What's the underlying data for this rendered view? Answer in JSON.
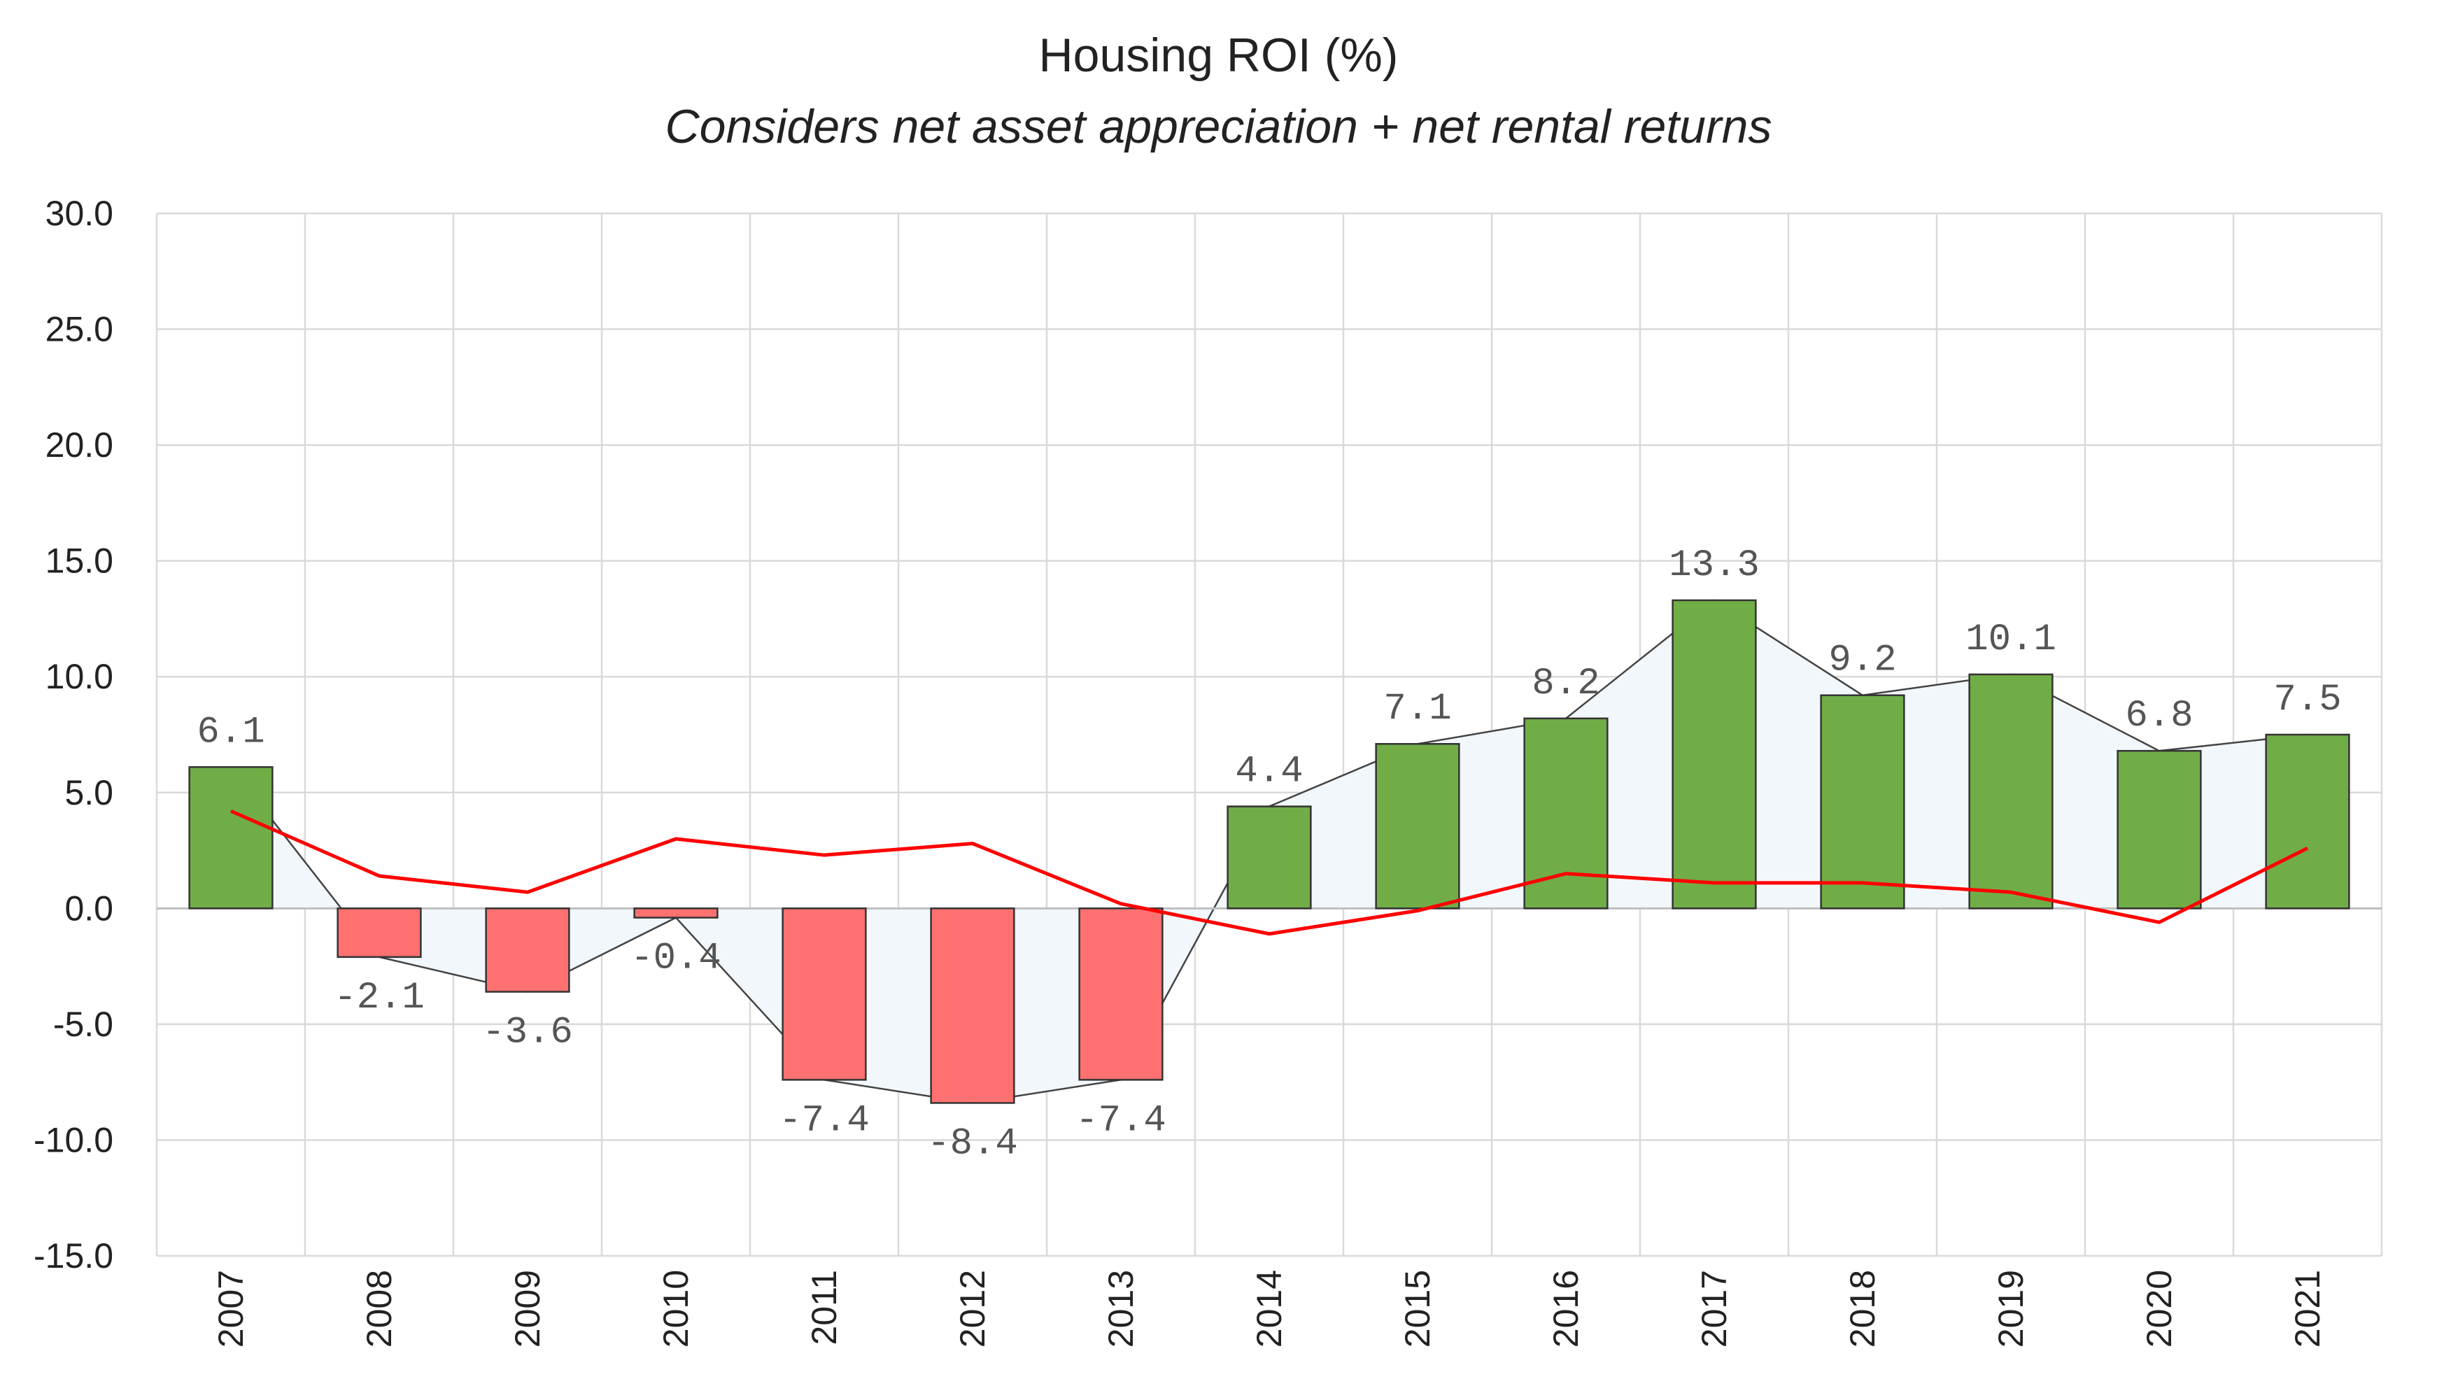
{
  "chart_data": {
    "type": "bar",
    "title": "Housing ROI (%)",
    "subtitle": "Considers net asset appreciation + net rental returns",
    "categories": [
      "2007",
      "2008",
      "2009",
      "2010",
      "2011",
      "2012",
      "2013",
      "2014",
      "2015",
      "2016",
      "2017",
      "2018",
      "2019",
      "2020",
      "2021"
    ],
    "series": [
      {
        "type": "bar",
        "values": [
          6.1,
          -2.1,
          -3.6,
          -0.4,
          -7.4,
          -8.4,
          -7.4,
          4.4,
          7.1,
          8.2,
          13.3,
          9.2,
          10.1,
          6.8,
          7.5
        ]
      },
      {
        "type": "line",
        "values": [
          4.2,
          1.4,
          0.7,
          3.0,
          2.3,
          2.8,
          0.2,
          -1.1,
          -0.1,
          1.5,
          1.1,
          1.1,
          0.7,
          -0.6,
          2.6
        ]
      }
    ],
    "data_labels": [
      "6.1",
      "-2.1",
      "-3.6",
      "-0.4",
      "-7.4",
      "-8.4",
      "-7.4",
      "4.4",
      "7.1",
      "8.2",
      "13.3",
      "9.2",
      "10.1",
      "6.8",
      "7.5"
    ],
    "y_ticks": [
      "30.0",
      "25.0",
      "20.0",
      "15.0",
      "10.0",
      "5.0",
      "0.0",
      "-5.0",
      "-10.0",
      "-15.0"
    ],
    "ylim": [
      -15,
      30
    ],
    "grid": true,
    "colors": {
      "positive": "#70AD47",
      "negative": "#FF7171",
      "line": "#FF0000",
      "area": "#F2F7FC",
      "grid": "#D9D9D9"
    }
  }
}
